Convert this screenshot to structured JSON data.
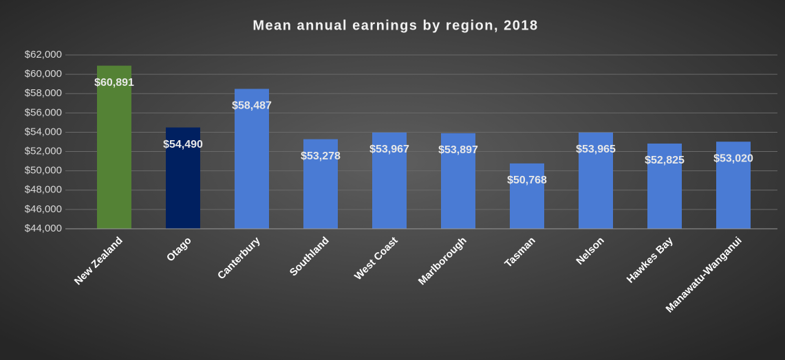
{
  "chart_data": {
    "type": "bar",
    "title": "Mean annual earnings by region, 2018",
    "categories": [
      "New Zealand",
      "Otago",
      "Canterbury",
      "Southland",
      "West Coast",
      "Marlborough",
      "Tasman",
      "Nelson",
      "Hawkes Bay",
      "Manawatu-Wanganui"
    ],
    "values": [
      60891,
      54490,
      58487,
      53278,
      53967,
      53897,
      50768,
      53965,
      52825,
      53020
    ],
    "value_labels": [
      "$60,891",
      "$54,490",
      "$58,487",
      "$53,278",
      "$53,967",
      "$53,897",
      "$50,768",
      "$53,965",
      "$52,825",
      "$53,020"
    ],
    "colors": [
      "#548235",
      "#002060",
      "#4a7bd4",
      "#4a7bd4",
      "#4a7bd4",
      "#4a7bd4",
      "#4a7bd4",
      "#4a7bd4",
      "#4a7bd4",
      "#4a7bd4"
    ],
    "ylim": [
      44000,
      62000
    ],
    "yticks": [
      {
        "value": 44000,
        "label": "$44,000"
      },
      {
        "value": 46000,
        "label": "$46,000"
      },
      {
        "value": 48000,
        "label": "$48,000"
      },
      {
        "value": 50000,
        "label": "$50,000"
      },
      {
        "value": 52000,
        "label": "$52,000"
      },
      {
        "value": 54000,
        "label": "$54,000"
      },
      {
        "value": 56000,
        "label": "$56,000"
      },
      {
        "value": 58000,
        "label": "$58,000"
      },
      {
        "value": 60000,
        "label": "$60,000"
      },
      {
        "value": 62000,
        "label": "$62,000"
      }
    ],
    "grid": true
  }
}
